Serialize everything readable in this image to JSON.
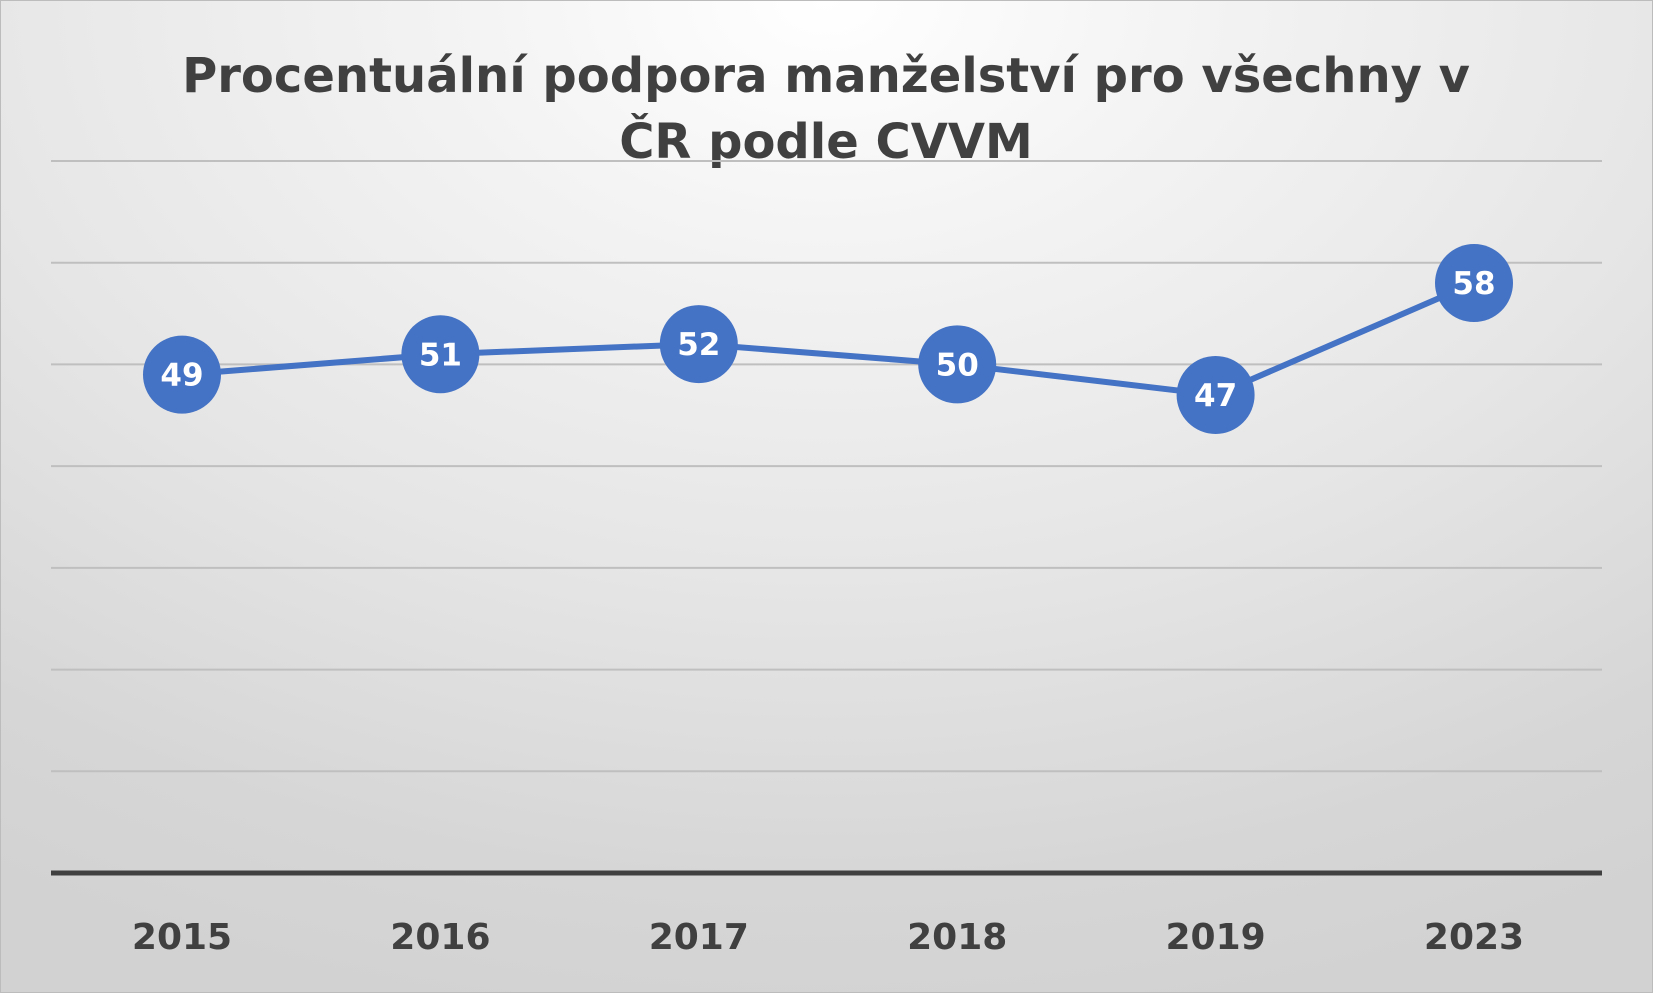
{
  "chart_data": {
    "type": "line",
    "title": "Procentuální podpora manželství pro všechny v ČR podle CVVM",
    "categories": [
      "2015",
      "2016",
      "2017",
      "2018",
      "2019",
      "2023"
    ],
    "series": [
      {
        "values": [
          49,
          51,
          52,
          50,
          47,
          58
        ]
      }
    ],
    "xlabel": "",
    "ylabel": "",
    "ylim": [
      0,
      70
    ],
    "grid": true,
    "data_labels": true,
    "y_tick_labels_shown": false,
    "legend": "none",
    "marker": "circle",
    "colors": {
      "series": "#4472C4",
      "label_text": "#FFFFFF",
      "gridline": "#BFBFBF",
      "axis": "#404040",
      "text": "#404040"
    }
  }
}
